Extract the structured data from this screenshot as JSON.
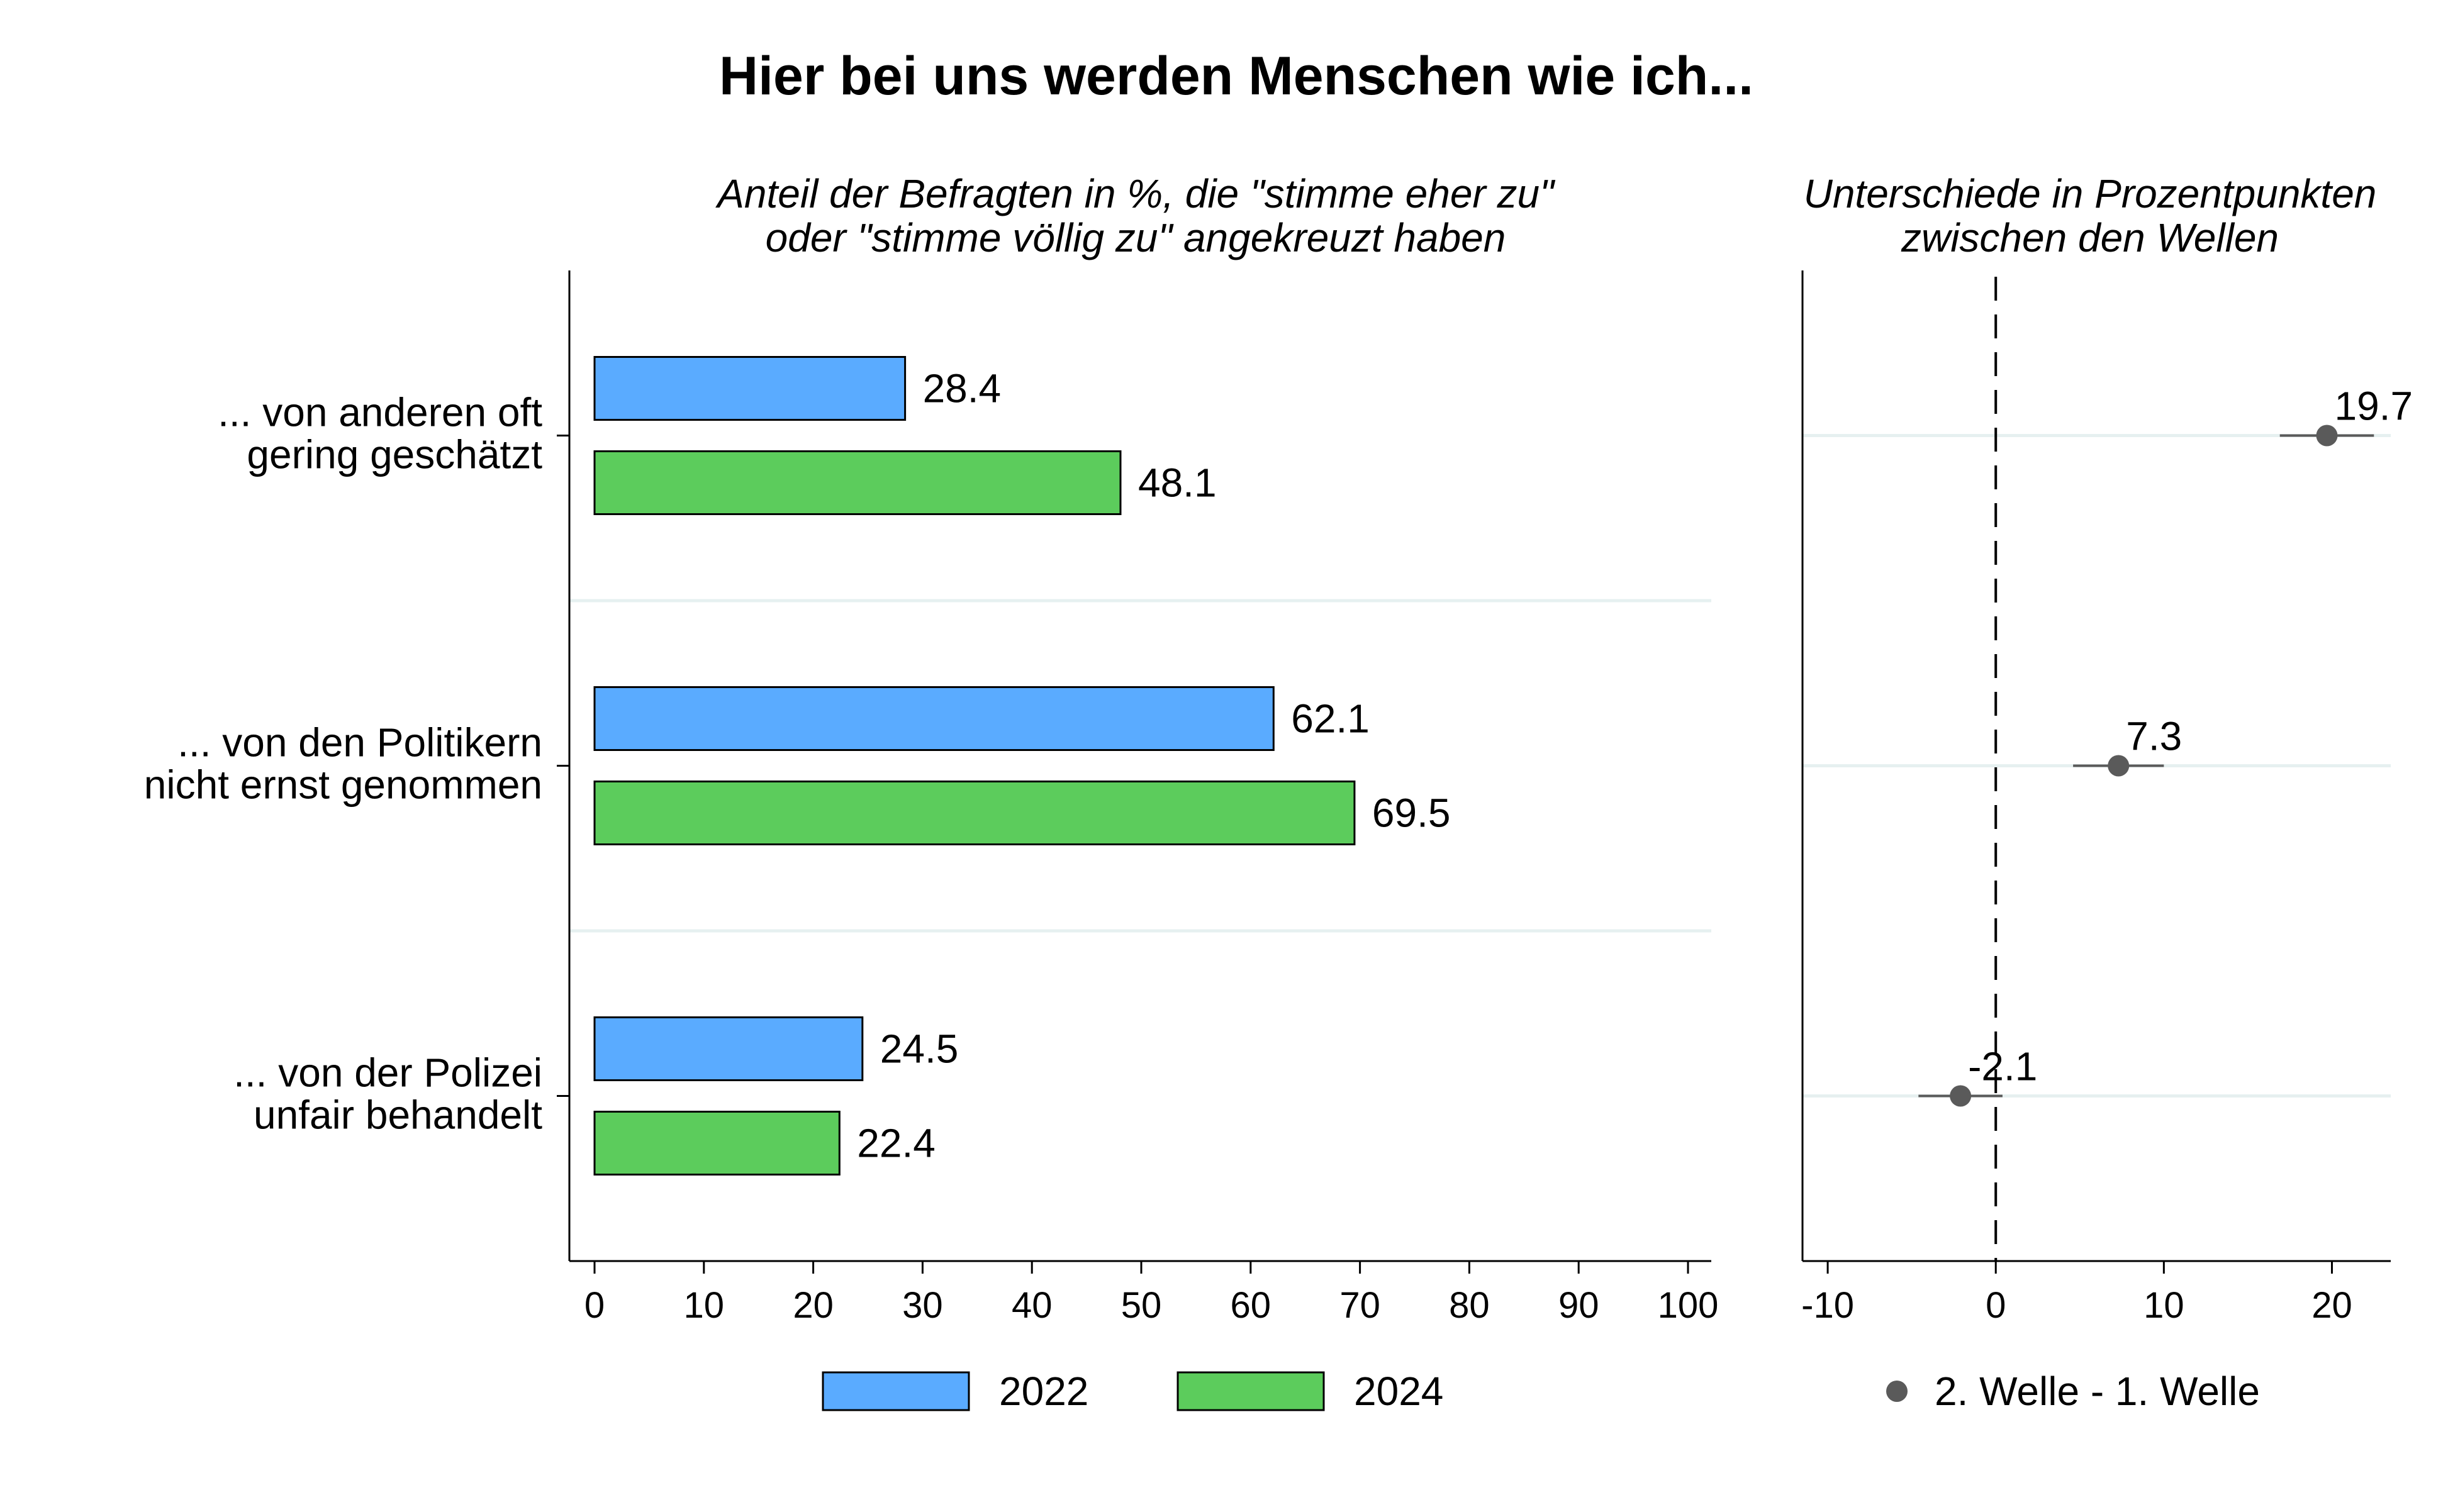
{
  "title": "Hier bei uns werden Menschen wie ich...",
  "colors": {
    "series_2022": "#5aabff",
    "series_2024": "#5ccc5c",
    "bar_stroke": "#000000",
    "dot": "#5a5a5a",
    "separator": "#e6f0f0"
  },
  "chart_data": [
    {
      "type": "bar",
      "orientation": "horizontal",
      "subtitle_line1": "Anteil der Befragten in %, die \"stimme eher zu\"",
      "subtitle_line2": "oder \"stimme völlig zu\" angekreuzt haben",
      "categories": [
        [
          "... von anderen oft",
          "gering geschätzt"
        ],
        [
          "... von den Politikern",
          "nicht ernst genommen"
        ],
        [
          "... von der Polizei",
          "unfair behandelt"
        ]
      ],
      "series": [
        {
          "name": "2022",
          "values": [
            28.4,
            62.1,
            24.5
          ]
        },
        {
          "name": "2024",
          "values": [
            48.1,
            69.5,
            22.4
          ]
        }
      ],
      "xlim": [
        0,
        100
      ],
      "xticks": [
        0,
        10,
        20,
        30,
        40,
        50,
        60,
        70,
        80,
        90,
        100
      ],
      "data_labels": true,
      "legend_position": "bottom"
    },
    {
      "type": "scatter",
      "subtitle_line1": "Unterschiede in Prozentpunkten",
      "subtitle_line2": "zwischen den Wellen",
      "series": [
        {
          "name": "2. Welle - 1. Welle",
          "values": [
            19.7,
            7.3,
            -2.1
          ],
          "ci_low": [
            16.9,
            4.6,
            -4.6
          ],
          "ci_high": [
            22.5,
            10.0,
            0.4
          ]
        }
      ],
      "xlim": [
        -11.5,
        23.5
      ],
      "xticks": [
        -10,
        0,
        10,
        20
      ],
      "reference_line": 0,
      "data_labels": true,
      "legend_position": "bottom"
    }
  ]
}
